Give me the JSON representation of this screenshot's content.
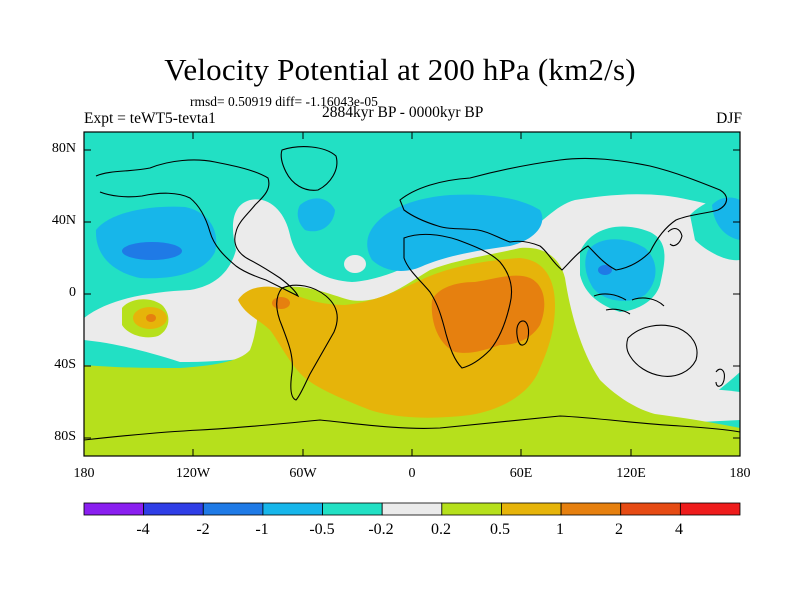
{
  "title": "Velocity Potential at 200 hPa (km2/s)",
  "stats": "rmsd= 0.50919 diff= -1.16043e-05",
  "experiment": "Expt = teWT5-tevta1",
  "period": "2884kyr BP - 0000kyr BP",
  "season": "DJF",
  "lat_labels": [
    "80N",
    "40N",
    "0",
    "40S",
    "80S"
  ],
  "lon_labels": [
    "180",
    "120W",
    "60W",
    "0",
    "60E",
    "120E",
    "180"
  ],
  "colorbar": {
    "labels": [
      "-4",
      "-2",
      "-1",
      "-0.5",
      "-0.2",
      "0.2",
      "0.5",
      "1",
      "2",
      "4"
    ],
    "colors": [
      "#8a1ff0",
      "#2f3ee6",
      "#1f7ae6",
      "#17b6ea",
      "#22e0c4",
      "#ebebeb",
      "#b6e01c",
      "#e6b40a",
      "#e6800f",
      "#e64b14",
      "#ee1c1c"
    ]
  }
}
